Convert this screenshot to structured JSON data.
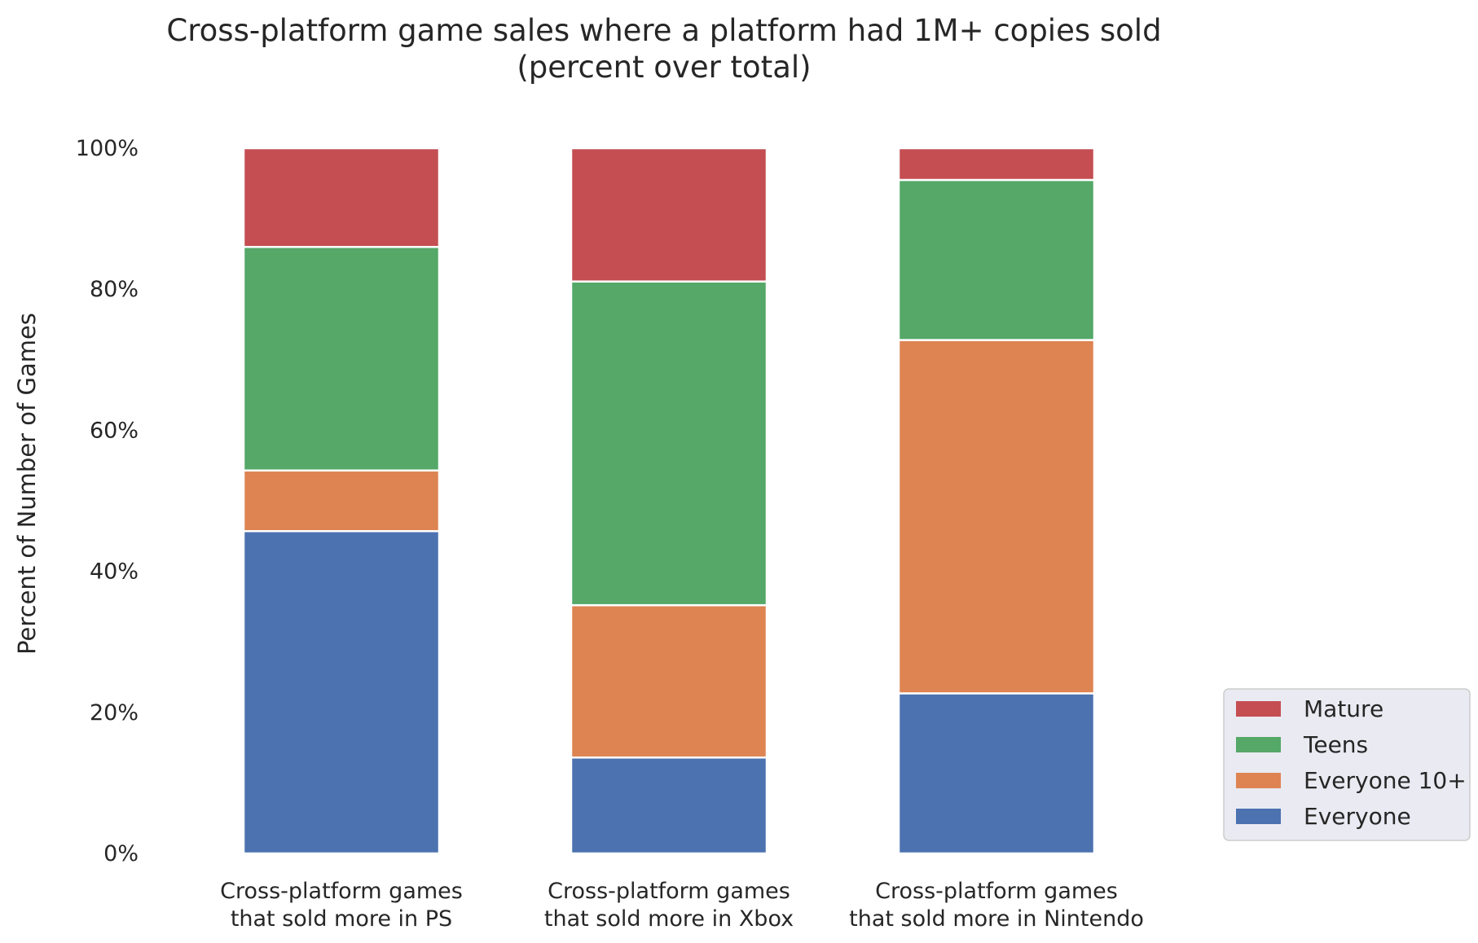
{
  "chart_data": {
    "type": "bar",
    "stacked": true,
    "title_lines": [
      "Cross-platform game sales where a platform had 1M+ copies sold",
      "(percent over total)"
    ],
    "ylabel": "Percent of Number of Games",
    "xlabel": "",
    "ylim": [
      0,
      100
    ],
    "yticks": [
      0,
      20,
      40,
      60,
      80,
      100
    ],
    "ytick_labels": [
      "0%",
      "20%",
      "40%",
      "60%",
      "80%",
      "100%"
    ],
    "grid": false,
    "legend_placement": "bottom-right outside",
    "categories": [
      [
        "Cross-platform games",
        "that sold more in PS"
      ],
      [
        "Cross-platform games",
        "that sold more in Xbox"
      ],
      [
        "Cross-platform games",
        "that sold more in Nintendo"
      ]
    ],
    "series": [
      {
        "name": "Everyone",
        "color": "#4c72b0",
        "values": [
          45.7,
          13.6,
          22.7
        ]
      },
      {
        "name": "Everyone 10+",
        "color": "#dd8452",
        "values": [
          8.6,
          21.6,
          50.1
        ]
      },
      {
        "name": "Teens",
        "color": "#55a868",
        "values": [
          31.7,
          45.9,
          22.7
        ]
      },
      {
        "name": "Mature",
        "color": "#c44e52",
        "values": [
          14.0,
          18.9,
          4.5
        ]
      }
    ],
    "legend_order": [
      "Mature",
      "Teens",
      "Everyone 10+",
      "Everyone"
    ]
  }
}
